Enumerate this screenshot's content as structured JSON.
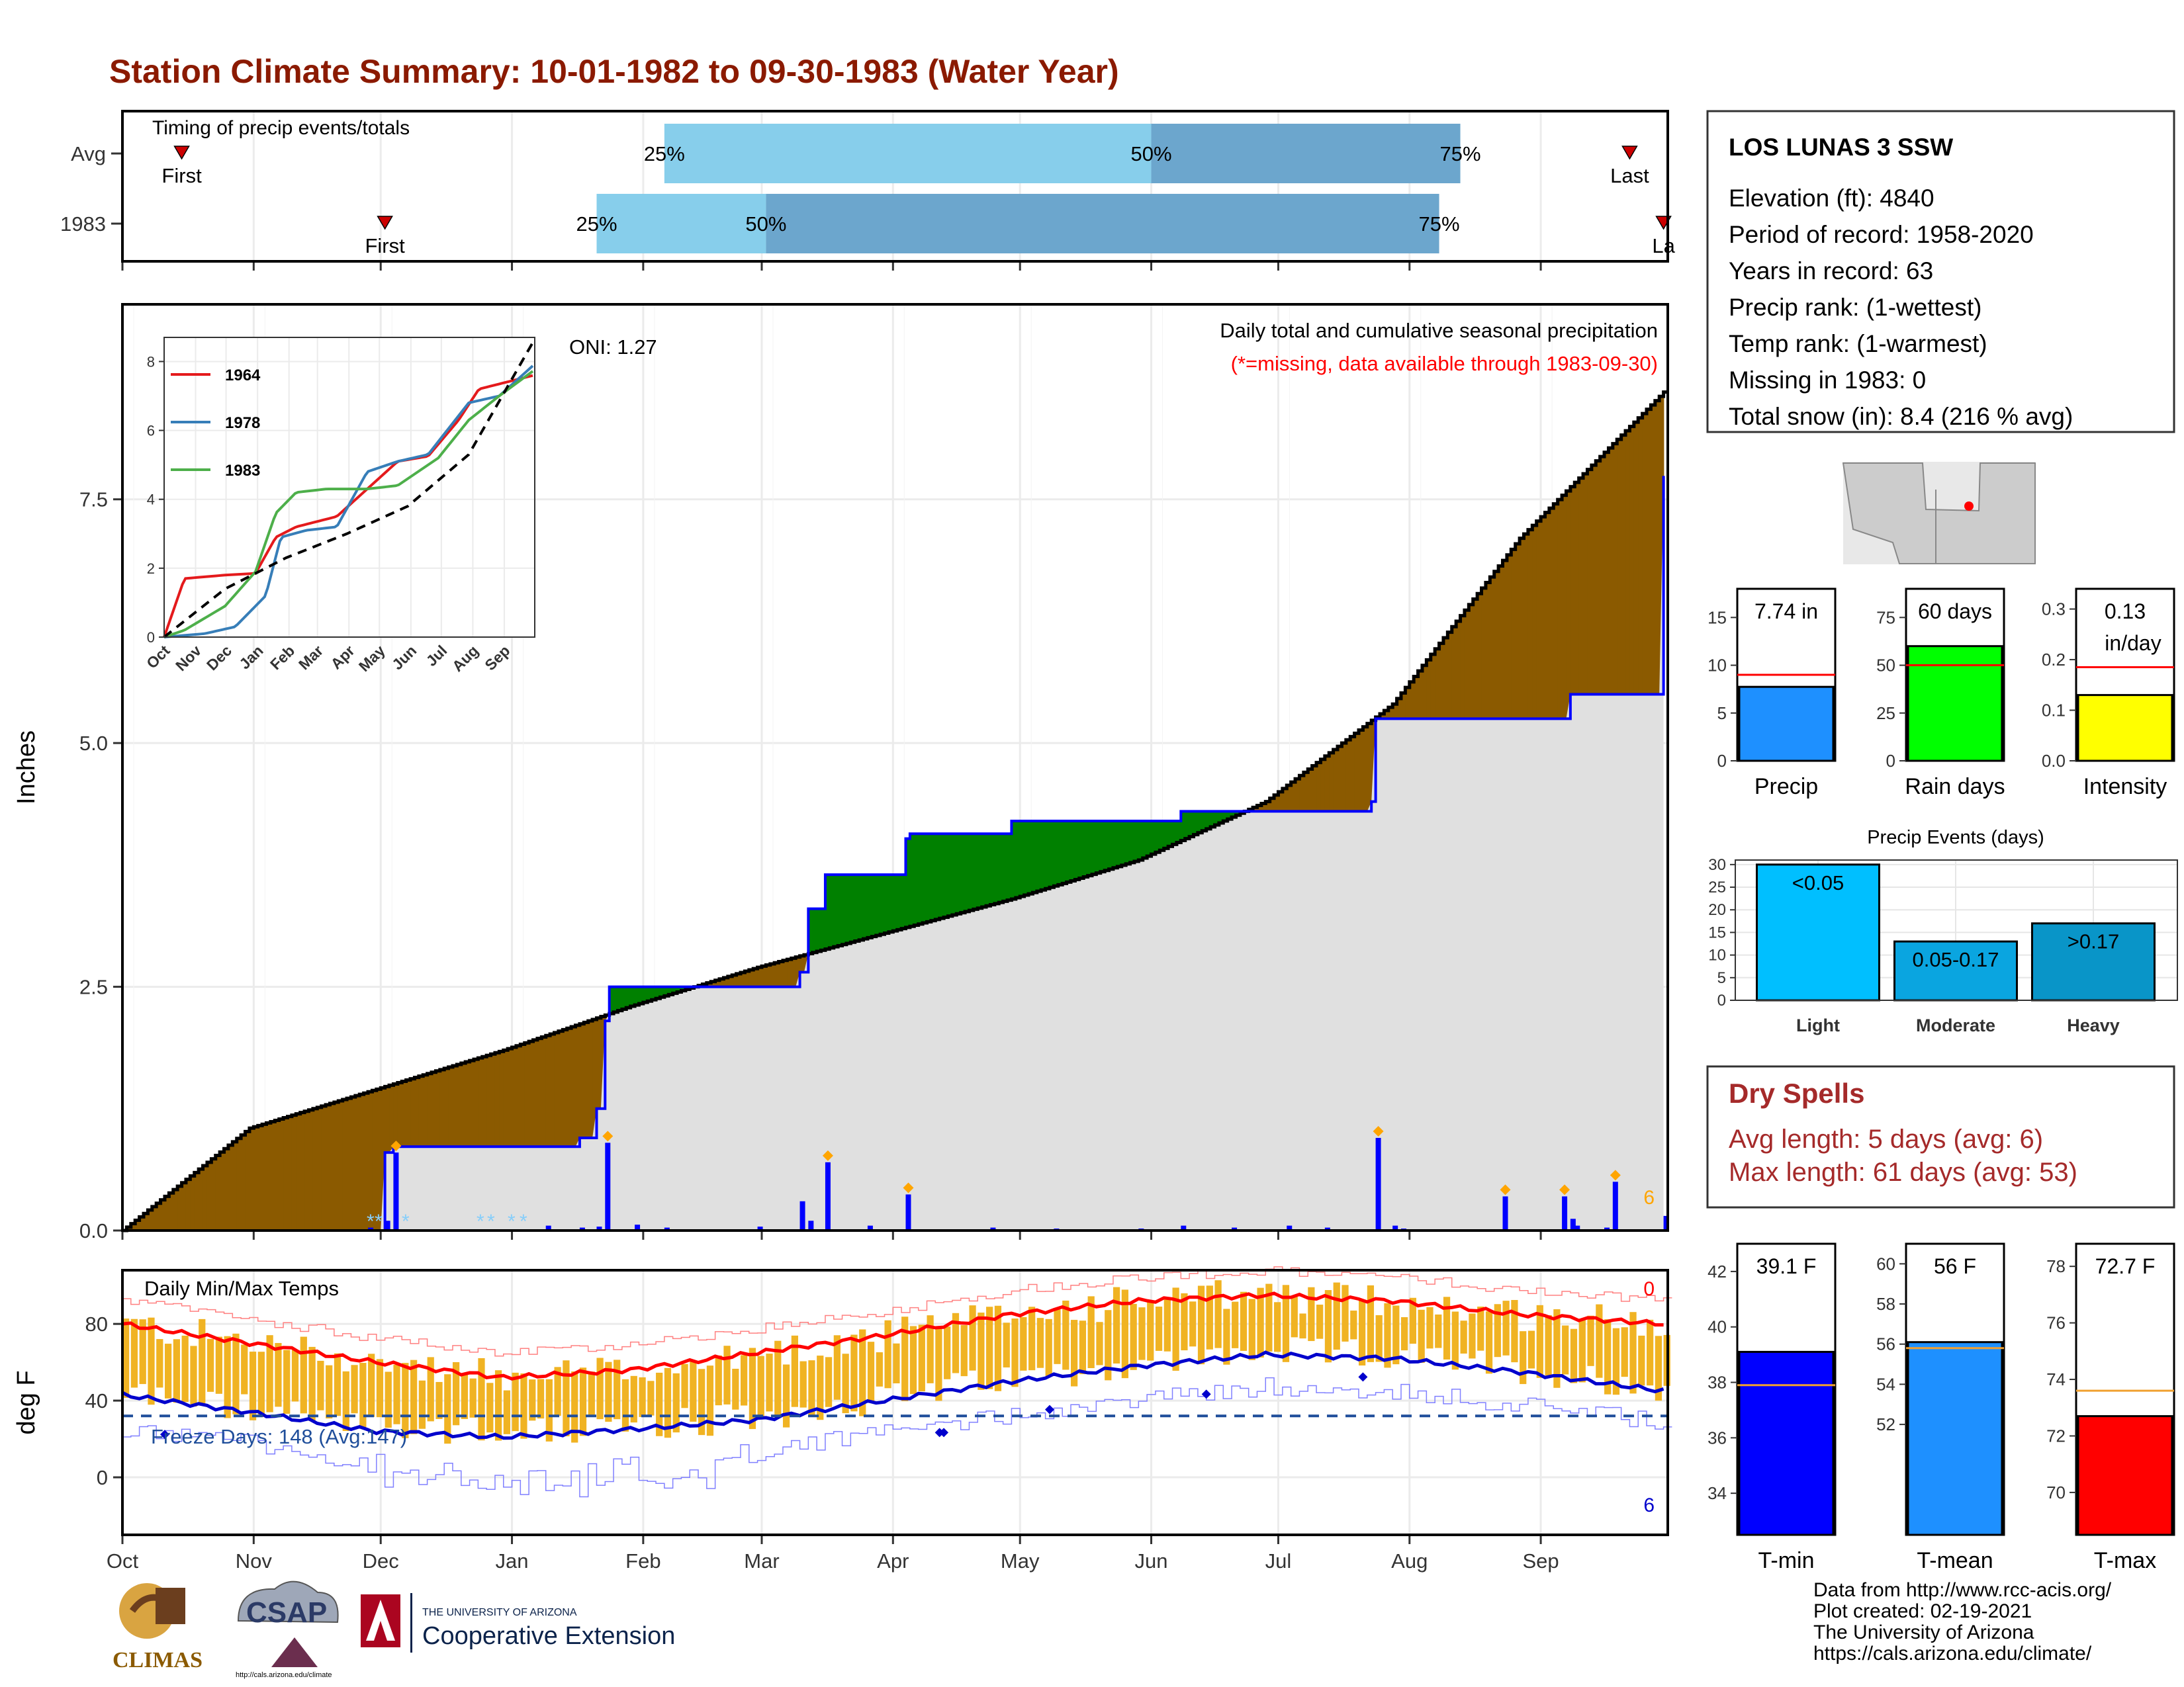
{
  "title": "Station Climate Summary: 10-01-1982 to 09-30-1983 (Water Year)",
  "months": [
    "Oct",
    "Nov",
    "Dec",
    "Jan",
    "Feb",
    "Mar",
    "Apr",
    "May",
    "Jun",
    "Jul",
    "Aug",
    "Sep"
  ],
  "timing": {
    "label": "Timing of precip events/totals",
    "rows": [
      {
        "label": "Avg",
        "first_label": "First",
        "last_label": "Last",
        "first_day": 14,
        "last_day": 356,
        "q25_day": 128,
        "q50_day": 243,
        "q75_day": 316,
        "q25_label": "25%",
        "q50_label": "50%",
        "q75_label": "75%"
      },
      {
        "label": "1983",
        "first_label": "First",
        "last_label": "La",
        "first_day": 62,
        "last_day": 364,
        "q25_day": 112,
        "q50_day": 152,
        "q75_day": 311,
        "q25_label": "25%",
        "q50_label": "50%",
        "q75_label": "75%"
      }
    ]
  },
  "precip_panel": {
    "ylabel": "Inches",
    "yticks": [
      "0.0",
      "2.5",
      "5.0",
      "7.5"
    ],
    "title_line1": "Daily total and cumulative seasonal precipitation",
    "title_line2": "(*=missing, data available through 1983-09-30)",
    "oni_label": "ONI: 1.27",
    "count_label": "6",
    "colors": {
      "above": "#008000",
      "below": "#8B5A00",
      "normal_fill": "#E0E0E0",
      "daily": "#0000FF"
    }
  },
  "inset": {
    "yticks": [
      "0",
      "2",
      "4",
      "6",
      "8"
    ],
    "xticks": [
      "Oct",
      "Nov",
      "Dec",
      "Jan",
      "Feb",
      "Mar",
      "Apr",
      "May",
      "Jun",
      "Jul",
      "Aug",
      "Sep"
    ],
    "legend": [
      {
        "name": "1964",
        "color": "#E41A1C"
      },
      {
        "name": "1978",
        "color": "#377EB8"
      },
      {
        "name": "1983",
        "color": "#4DAF4A"
      }
    ]
  },
  "temp_panel": {
    "ylabel": "deg F",
    "yticks": [
      "0",
      "40",
      "80"
    ],
    "title": "Daily Min/Max Temps",
    "freeze_label": "Freeze Days: 148 (Avg:147)",
    "top_count": "0",
    "bottom_count": "6"
  },
  "station": {
    "name": "LOS LUNAS 3 SSW",
    "lines": [
      "Elevation (ft): 4840",
      "Period of record: 1958-2020",
      "Years in record: 63",
      "Precip rank:  (1-wettest)",
      "Temp rank:  (1-warmest)",
      "Missing in 1983: 0",
      "Total snow (in): 8.4 (216 % avg)"
    ]
  },
  "bars_precip": [
    {
      "label": "Precip",
      "value_label": "7.74 in",
      "value": 7.74,
      "avg": 9.0,
      "ymax": 18,
      "ticks": [
        "0",
        "5",
        "10",
        "15"
      ],
      "tickvals": [
        0,
        5,
        10,
        15
      ],
      "color": "#1E90FF"
    },
    {
      "label": "Rain days",
      "value_label": "60 days",
      "value": 60,
      "avg": 50,
      "ymax": 90,
      "ticks": [
        "0",
        "25",
        "50",
        "75"
      ],
      "tickvals": [
        0,
        25,
        50,
        75
      ],
      "color": "#00FF00"
    },
    {
      "label": "Intensity",
      "value_label": "0.13",
      "value_label2": "in/day",
      "value": 0.13,
      "avg": 0.185,
      "ymax": 0.34,
      "ticks": [
        "0.0",
        "0.1",
        "0.2",
        "0.3"
      ],
      "tickvals": [
        0,
        0.1,
        0.2,
        0.3
      ],
      "color": "#FFFF00"
    }
  ],
  "precip_events": {
    "title": "Precip Events (days)",
    "ticks": [
      "0",
      "5",
      "10",
      "15",
      "20",
      "25",
      "30"
    ],
    "bars": [
      {
        "label": "Light",
        "value_label": "<0.05",
        "value": 30,
        "color": "#00BFFF"
      },
      {
        "label": "Moderate",
        "value_label": "0.05-0.17",
        "value": 13,
        "color": "#0AA5E0"
      },
      {
        "label": "Heavy",
        "value_label": ">0.17",
        "value": 17,
        "color": "#0995C8"
      }
    ]
  },
  "dry_spells": {
    "title": "Dry Spells",
    "line1": "Avg length: 5 days (avg: 6)",
    "line2": "Max length: 61 days (avg: 53)"
  },
  "bars_temp": [
    {
      "label": "T-min",
      "value_label": "39.1 F",
      "value": 39.1,
      "avg": 37.9,
      "ymin": 32.5,
      "ymax": 43.0,
      "ticks": [
        "34",
        "36",
        "38",
        "40",
        "42"
      ],
      "tickvals": [
        34,
        36,
        38,
        40,
        42
      ],
      "color": "#0000FF"
    },
    {
      "label": "T-mean",
      "value_label": "56 F",
      "value": 56.1,
      "avg": 55.8,
      "ymin": 46.5,
      "ymax": 61.0,
      "ticks": [
        "52",
        "54",
        "56",
        "58",
        "60"
      ],
      "tickvals": [
        52,
        54,
        56,
        58,
        60
      ],
      "color": "#1E90FF"
    },
    {
      "label": "T-max",
      "value_label": "72.7 F",
      "value": 72.7,
      "avg": 73.6,
      "ymin": 68.5,
      "ymax": 78.8,
      "ticks": [
        "70",
        "72",
        "74",
        "76",
        "78"
      ],
      "tickvals": [
        70,
        72,
        74,
        76,
        78
      ],
      "color": "#FF0000"
    }
  ],
  "footer": {
    "lines": [
      "Data from http://www.rcc-acis.org/",
      "Plot created: 02-19-2021",
      "The University of Arizona",
      "https://cals.arizona.edu/climate/"
    ]
  },
  "logos": {
    "climas": "CLIMAS",
    "csap": "CSAP",
    "csap_url": "http://cals.arizona.edu/climate",
    "ua_line1": "THE UNIVERSITY OF ARIZONA",
    "ua_line2": "Cooperative Extension"
  },
  "chart_data": [
    {
      "type": "area",
      "title": "Daily total and cumulative seasonal precipitation",
      "ylabel": "Inches",
      "ylim": [
        0,
        9.5
      ],
      "x_unit": "day of water year (0 = Oct 1)",
      "series": [
        {
          "name": "Cumulative 1983",
          "x": [
            0,
            58,
            62,
            64,
            100,
            108,
            112,
            114,
            115,
            160,
            162,
            166,
            176,
            185,
            186,
            210,
            250,
            295,
            296,
            342,
            364
          ],
          "values": [
            0,
            0,
            0.8,
            0.86,
            0.86,
            0.95,
            1.25,
            2.15,
            2.5,
            2.65,
            3.3,
            3.65,
            3.65,
            4.02,
            4.07,
            4.2,
            4.3,
            4.4,
            5.25,
            5.5,
            7.74
          ]
        },
        {
          "name": "Average cumulative",
          "x": [
            0,
            30,
            60,
            90,
            120,
            150,
            180,
            210,
            240,
            270,
            300,
            330,
            364
          ],
          "values": [
            0,
            1.05,
            1.45,
            1.85,
            2.3,
            2.7,
            3.05,
            3.4,
            3.8,
            4.4,
            5.4,
            7.1,
            8.6
          ]
        }
      ],
      "daily": {
        "x": [
          58,
          62,
          64,
          100,
          108,
          112,
          114,
          121,
          128,
          150,
          160,
          162,
          166,
          176,
          185,
          205,
          220,
          240,
          250,
          262,
          275,
          284,
          296,
          300,
          302,
          326,
          340,
          342,
          343,
          350,
          352,
          364
        ],
        "values": [
          0.03,
          0.1,
          0.8,
          0.05,
          0.03,
          0.04,
          0.9,
          0.06,
          0.03,
          0.04,
          0.3,
          0.1,
          0.7,
          0.05,
          0.37,
          0.03,
          0.02,
          0.02,
          0.05,
          0.03,
          0.05,
          0.03,
          0.95,
          0.05,
          0.02,
          0.35,
          0.35,
          0.12,
          0.05,
          0.03,
          0.5,
          0.15
        ]
      }
    },
    {
      "type": "line",
      "title": "Daily Min/Max Temps",
      "ylabel": "deg F",
      "ylim": [
        -30,
        108
      ],
      "series": [
        {
          "name": "Avg max",
          "x": [
            0,
            30,
            60,
            90,
            120,
            150,
            180,
            210,
            240,
            270,
            300,
            330,
            364
          ],
          "values": [
            80,
            70,
            60,
            52,
            56,
            65,
            74,
            85,
            92,
            95,
            92,
            85,
            80
          ]
        },
        {
          "name": "Avg min",
          "x": [
            0,
            30,
            60,
            90,
            120,
            150,
            180,
            210,
            240,
            270,
            300,
            330,
            364
          ],
          "values": [
            43,
            34,
            24,
            21,
            25,
            30,
            40,
            50,
            58,
            64,
            62,
            55,
            45
          ]
        },
        {
          "name": "Freeze threshold",
          "x": [
            0,
            364
          ],
          "values": [
            32,
            32
          ]
        }
      ]
    },
    {
      "type": "line",
      "title": "Inset cumulative precipitation",
      "ylim": [
        0,
        8.5
      ],
      "series": [
        {
          "name": "1964",
          "x": [
            0,
            20,
            60,
            90,
            110,
            130,
            170,
            230,
            260,
            290,
            310,
            364
          ],
          "values": [
            0,
            1.7,
            1.8,
            1.85,
            2.9,
            3.2,
            3.5,
            5.1,
            5.25,
            6.3,
            7.2,
            7.6
          ]
        },
        {
          "name": "1978",
          "x": [
            0,
            40,
            70,
            100,
            115,
            140,
            170,
            200,
            230,
            260,
            300,
            330,
            364
          ],
          "values": [
            0,
            0.1,
            0.3,
            1.2,
            2.9,
            3.1,
            3.2,
            4.8,
            5.1,
            5.3,
            6.8,
            7.0,
            7.9
          ]
        },
        {
          "name": "1983",
          "x": [
            0,
            20,
            60,
            90,
            110,
            130,
            160,
            200,
            230,
            270,
            300,
            330,
            364
          ],
          "values": [
            0,
            0.2,
            0.9,
            1.9,
            3.6,
            4.2,
            4.3,
            4.3,
            4.4,
            5.2,
            6.3,
            7.0,
            7.74
          ]
        },
        {
          "name": "Average",
          "x": [
            0,
            60,
            120,
            180,
            240,
            300,
            364
          ],
          "values": [
            0,
            1.4,
            2.3,
            3.0,
            3.8,
            5.3,
            8.6
          ]
        }
      ]
    }
  ]
}
